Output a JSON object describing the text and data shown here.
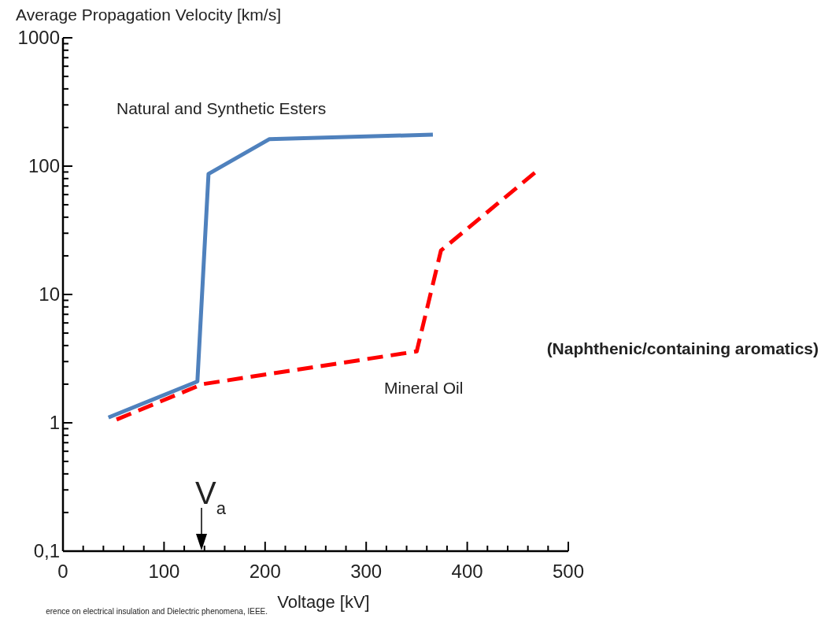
{
  "chart_data": {
    "type": "line",
    "xlabel": "Voltage [kV]",
    "ylabel": "Average Propagation Velocity [km/s]",
    "log": "y",
    "xlim": [
      0,
      500
    ],
    "ylim": [
      0.1,
      1000
    ],
    "xticks": [
      0,
      {
        "value": 20,
        "label": null
      },
      {
        "value": 40,
        "label": null
      },
      {
        "value": 60,
        "label": null
      },
      {
        "value": 80,
        "label": null
      },
      100,
      {
        "value": 120,
        "label": null
      },
      {
        "value": 140,
        "label": null
      },
      {
        "value": 160,
        "label": null
      },
      {
        "value": 180,
        "label": null
      },
      200,
      {
        "value": 220,
        "label": null
      },
      {
        "value": 240,
        "label": null
      },
      {
        "value": 260,
        "label": null
      },
      {
        "value": 280,
        "label": null
      },
      300,
      {
        "value": 320,
        "label": null
      },
      {
        "value": 340,
        "label": null
      },
      {
        "value": 360,
        "label": null
      },
      {
        "value": 380,
        "label": null
      },
      400,
      {
        "value": 420,
        "label": null
      },
      {
        "value": 440,
        "label": null
      },
      {
        "value": 460,
        "label": null
      },
      {
        "value": 480,
        "label": null
      },
      500
    ],
    "yticks": [
      {
        "value": 0.1,
        "label": "0,1"
      },
      {
        "value": 0.2,
        "label": null
      },
      {
        "value": 0.3,
        "label": null
      },
      {
        "value": 0.4,
        "label": null
      },
      {
        "value": 0.5,
        "label": null
      },
      {
        "value": 0.6,
        "label": null
      },
      {
        "value": 0.7,
        "label": null
      },
      {
        "value": 0.8,
        "label": null
      },
      {
        "value": 0.9,
        "label": null
      },
      1,
      {
        "value": 2,
        "label": null
      },
      {
        "value": 3,
        "label": null
      },
      {
        "value": 4,
        "label": null
      },
      {
        "value": 5,
        "label": null
      },
      {
        "value": 6,
        "label": null
      },
      {
        "value": 7,
        "label": null
      },
      {
        "value": 8,
        "label": null
      },
      {
        "value": 9,
        "label": null
      },
      10,
      {
        "value": 20,
        "label": null
      },
      {
        "value": 30,
        "label": null
      },
      {
        "value": 40,
        "label": null
      },
      {
        "value": 50,
        "label": null
      },
      {
        "value": 60,
        "label": null
      },
      {
        "value": 70,
        "label": null
      },
      {
        "value": 80,
        "label": null
      },
      {
        "value": 90,
        "label": null
      },
      100,
      {
        "value": 200,
        "label": null
      },
      {
        "value": 300,
        "label": null
      },
      {
        "value": 400,
        "label": null
      },
      {
        "value": 500,
        "label": null
      },
      {
        "value": 600,
        "label": null
      },
      {
        "value": 700,
        "label": null
      },
      {
        "value": 800,
        "label": null
      },
      {
        "value": 900,
        "label": null
      },
      1000
    ],
    "series": [
      {
        "name": "Natural and Synthetic Esters",
        "color": "#4f81bd",
        "line_style": "solid",
        "x": [
          45,
          133,
          144,
          204,
          366
        ],
        "values": [
          1.1,
          2.1,
          87,
          162,
          176
        ]
      },
      {
        "name": "Mineral Oil",
        "color": "#ff0000",
        "line_style": "dashed",
        "x": [
          53,
          138,
          350,
          374,
          467
        ],
        "values": [
          1.06,
          2.0,
          3.6,
          22,
          89
        ]
      }
    ],
    "annotations": [
      "(Naphthenic/containing aromatics)",
      "V$_{a}$",
      "erence on electrical insulation and Dielectric phenomena, IEEE."
    ]
  }
}
